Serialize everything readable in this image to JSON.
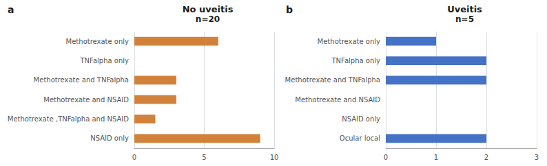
{
  "chart_data": [
    {
      "type": "bar",
      "orientation": "horizontal",
      "title": "No uveitis",
      "subtitle": "n=20",
      "annotations": [
        "a"
      ],
      "categories": [
        "Methotrexate only",
        "TNFalpha only",
        "Methotrexate and TNFalpha",
        "Methotrexate and NSAID",
        "Methotrexate ,TNFalpha and NSAID",
        "NSAID only"
      ],
      "values": [
        6,
        0,
        3,
        3,
        1.5,
        9
      ],
      "color": "#D2813A",
      "xlim": [
        0,
        10
      ],
      "xticks": [
        0,
        5,
        10
      ],
      "grid": true
    },
    {
      "type": "bar",
      "orientation": "horizontal",
      "title": "Uveitis",
      "subtitle": "n=5",
      "annotations": [
        "b"
      ],
      "categories": [
        "Methotrexate only",
        "TNFalpha only",
        "Methotrexate and TNFalpha",
        "Methotrexate and NSAID",
        "NSAID only",
        "Ocular local"
      ],
      "values": [
        1,
        2,
        2,
        0,
        0,
        2
      ],
      "color": "#4472C4",
      "xlim": [
        0,
        3
      ],
      "xticks": [
        0,
        1,
        2,
        3
      ],
      "grid": true
    }
  ]
}
